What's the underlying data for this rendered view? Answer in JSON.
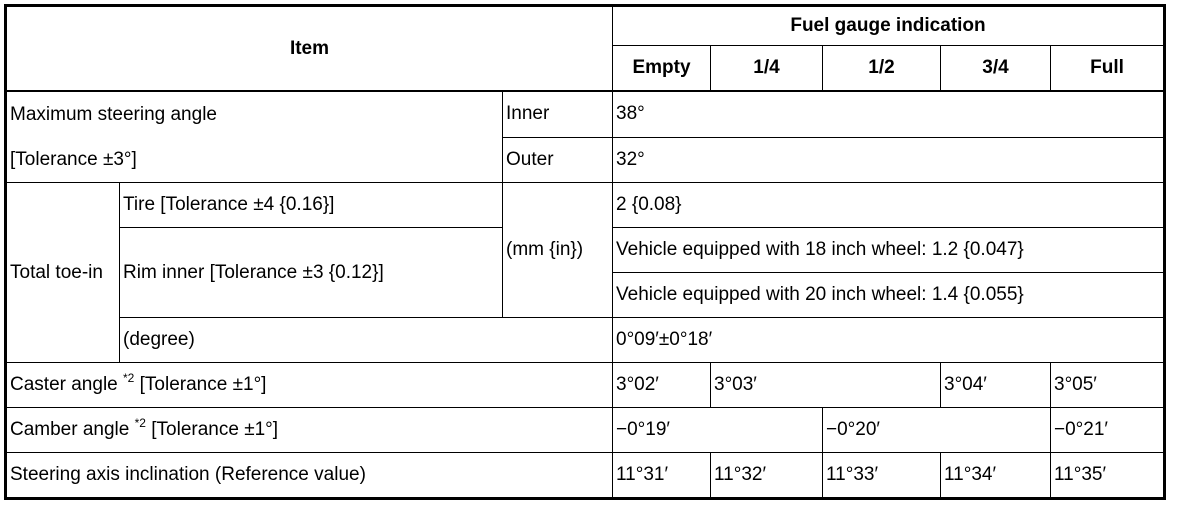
{
  "header": {
    "item": "Item",
    "fuel_gauge": "Fuel gauge indication",
    "levels": [
      "Empty",
      "1/4",
      "1/2",
      "3/4",
      "Full"
    ]
  },
  "max_steering": {
    "label_line1": "Maximum steering angle",
    "label_line2": "[Tolerance ±3°]",
    "inner_label": "Inner",
    "inner_value": "38°",
    "outer_label": "Outer",
    "outer_value": "32°"
  },
  "toe_in": {
    "label": "Total toe-in",
    "tire_label": "Tire [Tolerance ±4 {0.16}]",
    "unit": "(mm {in})",
    "tire_value": "2 {0.08}",
    "rim_label": "Rim inner [Tolerance ±3 {0.12}]",
    "rim_value_18": "Vehicle equipped with 18 inch wheel: 1.2 {0.047}",
    "rim_value_20": "Vehicle equipped with 20 inch wheel: 1.4 {0.055}",
    "degree_label": "(degree)",
    "degree_value": "0°09′±0°18′"
  },
  "caster": {
    "label": "Caster angle",
    "note": "*2",
    "tolerance": " [Tolerance ±1°]",
    "values": [
      "3°02′",
      "3°03′",
      "3°04′",
      "3°05′"
    ]
  },
  "camber": {
    "label": "Camber angle",
    "note": "*2",
    "tolerance": " [Tolerance ±1°]",
    "values": [
      "−0°19′",
      "−0°20′",
      "−0°21′"
    ]
  },
  "steering_axis": {
    "label": "Steering axis inclination (Reference value)",
    "values": [
      "11°31′",
      "11°32′",
      "11°33′",
      "11°34′",
      "11°35′"
    ]
  }
}
